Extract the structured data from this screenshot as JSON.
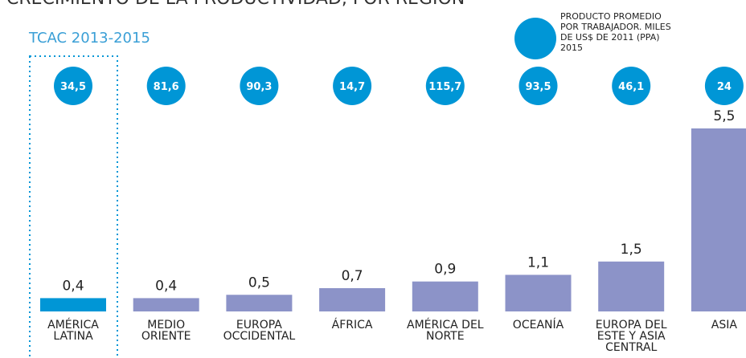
{
  "chart_data": {
    "type": "bar",
    "title": "CRECIMIENTO DE LA PRODUCTIVIDAD, POR REGIÓN",
    "subtitle": "TCAC 2013-2015",
    "categories": [
      "AMÉRICA LATINA",
      "MEDIO ORIENTE",
      "EUROPA OCCIDENTAL",
      "ÁFRICA",
      "AMÉRICA DEL NORTE",
      "OCEANÍA",
      "EUROPA DEL ESTE Y ASIA CENTRAL",
      "ASIA"
    ],
    "values": [
      0.4,
      0.4,
      0.5,
      0.7,
      0.9,
      1.1,
      1.5,
      5.5
    ],
    "value_labels": [
      "0,4",
      "0,4",
      "0,5",
      "0,7",
      "0,9",
      "1,1",
      "1,5",
      "5,5"
    ],
    "colors": [
      "#0096d6",
      "#8c93c8",
      "#8c93c8",
      "#8c93c8",
      "#8c93c8",
      "#8c93c8",
      "#8c93c8",
      "#8c93c8"
    ],
    "circles": {
      "name": "PRODUCTO PROMEDIO POR TRABAJADOR. MILES DE US$ DE 2011 (PPA) 2015",
      "color": "#0096d6",
      "values": [
        34.5,
        81.6,
        90.3,
        14.7,
        115.7,
        93.5,
        46.1,
        24
      ],
      "value_labels": [
        "34,5",
        "81,6",
        "90,3",
        "14,7",
        "115,7",
        "93,5",
        "46,1",
        "24"
      ]
    }
  }
}
